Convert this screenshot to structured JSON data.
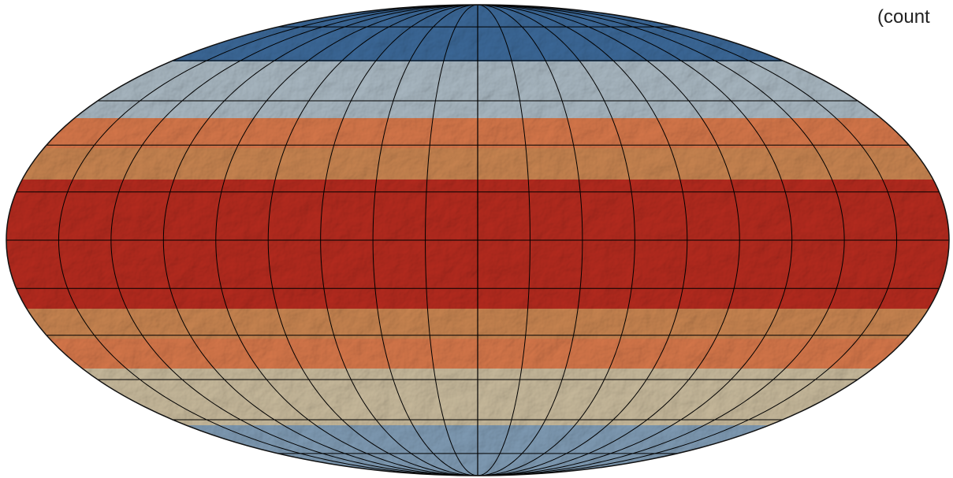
{
  "map": {
    "projection": "mollweide",
    "corner_label": "(count",
    "colors": {
      "graticule": "#000000",
      "outline": "#111111",
      "background": "#ffffff"
    },
    "latitude_bands": [
      {
        "band": "north-polar",
        "color": "#3b6898"
      },
      {
        "band": "north-high",
        "color": "#a9b8c2"
      },
      {
        "band": "north-mid",
        "color": "#d6774a"
      },
      {
        "band": "north-low",
        "color": "#c88450"
      },
      {
        "band": "equatorial",
        "color": "#b52a1e"
      },
      {
        "band": "south-low",
        "color": "#c88450"
      },
      {
        "band": "south-mid",
        "color": "#d6774a"
      },
      {
        "band": "south-high",
        "color": "#c8ba9c"
      },
      {
        "band": "south-polar",
        "color": "#7f9bb4"
      }
    ],
    "graticule": {
      "meridian_step_deg": 20,
      "parallel_step_deg": 15
    }
  }
}
